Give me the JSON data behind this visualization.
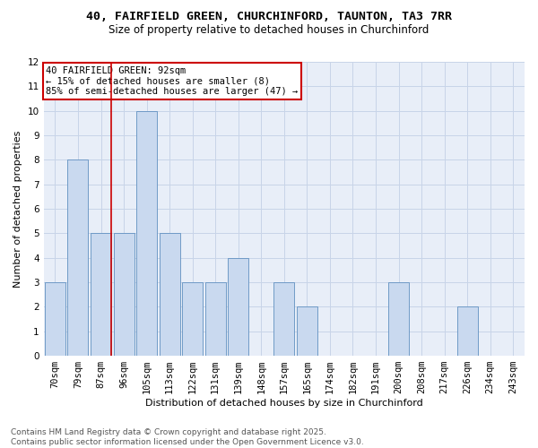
{
  "title_line1": "40, FAIRFIELD GREEN, CHURCHINFORD, TAUNTON, TA3 7RR",
  "title_line2": "Size of property relative to detached houses in Churchinford",
  "xlabel": "Distribution of detached houses by size in Churchinford",
  "ylabel": "Number of detached properties",
  "categories": [
    "70sqm",
    "79sqm",
    "87sqm",
    "96sqm",
    "105sqm",
    "113sqm",
    "122sqm",
    "131sqm",
    "139sqm",
    "148sqm",
    "157sqm",
    "165sqm",
    "174sqm",
    "182sqm",
    "191sqm",
    "200sqm",
    "208sqm",
    "217sqm",
    "226sqm",
    "234sqm",
    "243sqm"
  ],
  "values": [
    3,
    8,
    5,
    5,
    10,
    5,
    3,
    3,
    4,
    0,
    3,
    2,
    0,
    0,
    0,
    3,
    0,
    0,
    2,
    0,
    0
  ],
  "bar_color": "#c9d9ef",
  "bar_edge_color": "#6090c0",
  "vline_bar_index": 2,
  "annotation_text": "40 FAIRFIELD GREEN: 92sqm\n← 15% of detached houses are smaller (8)\n85% of semi-detached houses are larger (47) →",
  "annotation_box_color": "#ffffff",
  "annotation_box_edge_color": "#cc0000",
  "vline_color": "#cc0000",
  "ylim": [
    0,
    12
  ],
  "yticks": [
    0,
    1,
    2,
    3,
    4,
    5,
    6,
    7,
    8,
    9,
    10,
    11,
    12
  ],
  "grid_color": "#c8d4e8",
  "bg_color": "#e8eef8",
  "footer_line1": "Contains HM Land Registry data © Crown copyright and database right 2025.",
  "footer_line2": "Contains public sector information licensed under the Open Government Licence v3.0.",
  "title_fontsize": 9.5,
  "subtitle_fontsize": 8.5,
  "axis_label_fontsize": 8,
  "tick_fontsize": 7.5,
  "annotation_fontsize": 7.5,
  "footer_fontsize": 6.5
}
